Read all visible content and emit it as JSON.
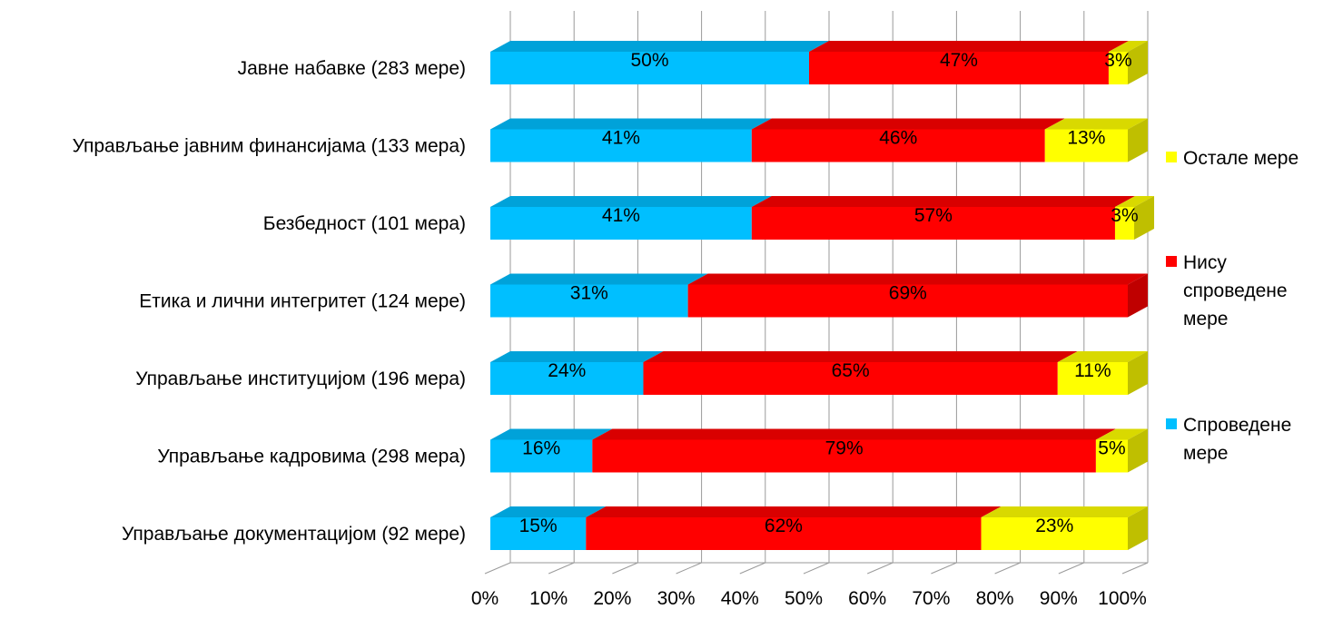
{
  "chart_data": {
    "type": "bar",
    "orientation": "horizontal",
    "stacked": "percent",
    "three_d": true,
    "categories": [
      "Јавне набавке (283 мере)",
      "Управљање јавним финансијама (133 мера)",
      "Безбедност (101 мера)",
      "Етика и лични интегритет (124 мере)",
      "Управљање институцијом (196 мера)",
      "Управљање кадровима (298 мера)",
      "Управљање документацијом (92 мере)"
    ],
    "series": [
      {
        "name": "Спроведене мере",
        "color": "#00bfff",
        "values": [
          50,
          41,
          41,
          31,
          24,
          16,
          15
        ],
        "labels": [
          "50%",
          "41%",
          "41%",
          "31%",
          "24%",
          "16%",
          "15%"
        ]
      },
      {
        "name": "Нису спроведене мере",
        "color": "#ff0000",
        "values": [
          47,
          46,
          57,
          69,
          65,
          79,
          62
        ],
        "labels": [
          "47%",
          "46%",
          "57%",
          "69%",
          "65%",
          "79%",
          "62%"
        ]
      },
      {
        "name": "Остале мере",
        "color": "#ffff00",
        "values": [
          3,
          13,
          3,
          0,
          11,
          5,
          23
        ],
        "labels": [
          "3%",
          "13%",
          "3%",
          "",
          "11%",
          "5%",
          "23%"
        ]
      }
    ],
    "x_ticks": [
      "0%",
      "10%",
      "20%",
      "30%",
      "40%",
      "50%",
      "60%",
      "70%",
      "80%",
      "90%",
      "100%"
    ],
    "xlim": [
      0,
      100
    ],
    "grid": true,
    "legend": {
      "position": "right",
      "items": [
        {
          "lines": [
            "Остале мере"
          ],
          "color": "#ffff00"
        },
        {
          "lines": [
            "Нису",
            "спроведене",
            "мере"
          ],
          "color": "#ff0000"
        },
        {
          "lines": [
            "Спроведене",
            "мере"
          ],
          "color": "#00bfff"
        }
      ]
    }
  }
}
